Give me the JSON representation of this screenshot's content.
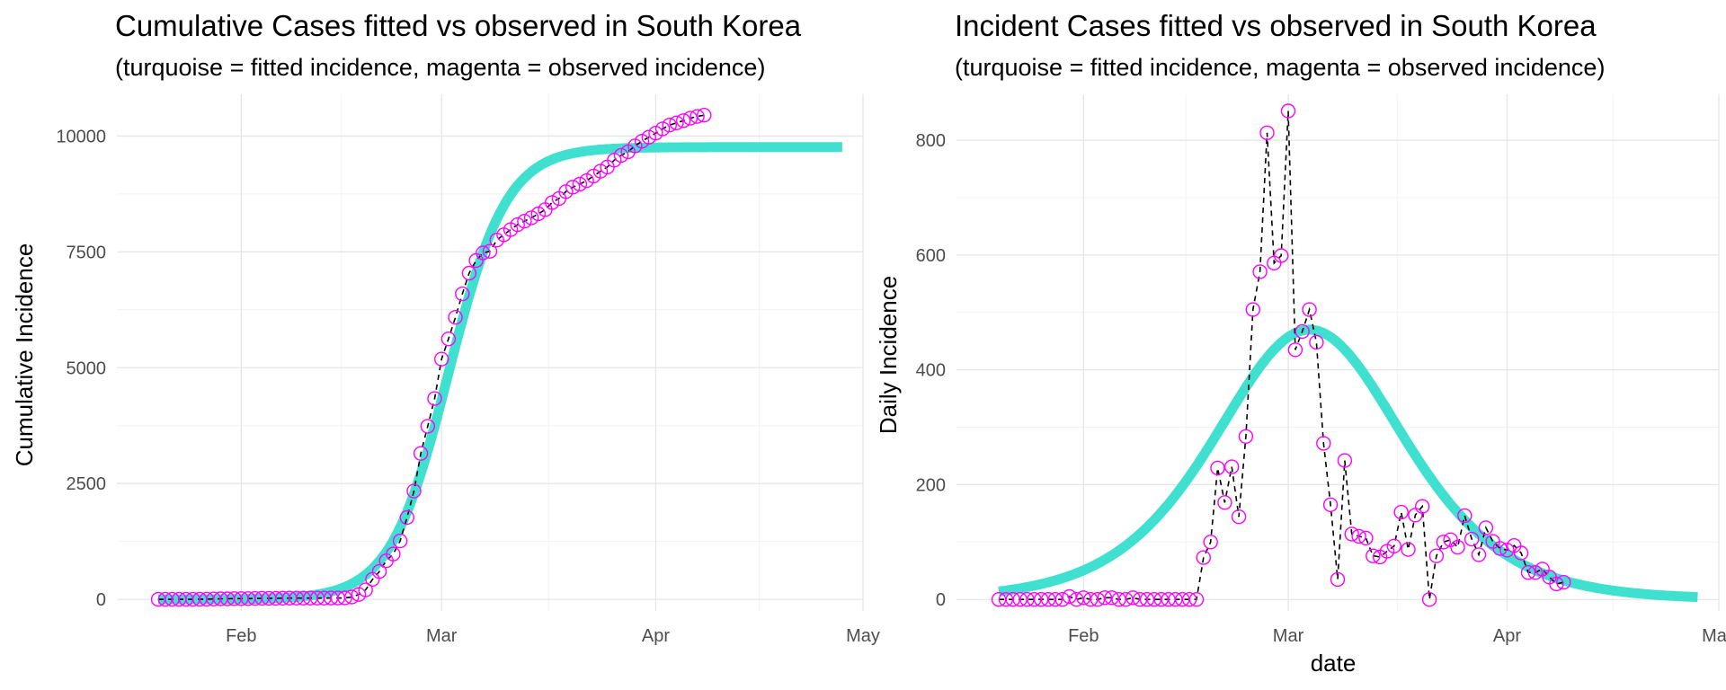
{
  "chart_data": [
    {
      "type": "line",
      "title": "Cumulative Cases fitted vs observed in South Korea",
      "subtitle": "(turquoise = fitted incidence, magenta = observed incidence)",
      "xlabel": "",
      "ylabel": "Cumulative Incidence",
      "x_range": [
        "2020-01-14",
        "2020-05-01"
      ],
      "ylim": [
        -250,
        10900
      ],
      "x_ticks": [
        {
          "date": "2020-02-01",
          "label": "Feb"
        },
        {
          "date": "2020-03-01",
          "label": "Mar"
        },
        {
          "date": "2020-04-01",
          "label": "Apr"
        },
        {
          "date": "2020-05-01",
          "label": "May"
        }
      ],
      "y_ticks": [
        {
          "value": 0,
          "label": "0"
        },
        {
          "value": 2500,
          "label": "2500"
        },
        {
          "value": 5000,
          "label": "5000"
        },
        {
          "value": 7500,
          "label": "7500"
        },
        {
          "value": 10000,
          "label": "10000"
        }
      ],
      "grid": true,
      "series": [
        {
          "kind": "fitted",
          "color": "#40e0d0",
          "x_start": "2020-01-20",
          "x_end": "2020-04-28",
          "logistic": {
            "K": 9760,
            "midpoint": "2020-03-02",
            "scale_days": 4.2
          }
        },
        {
          "kind": "observed",
          "color": "#ff00ff",
          "x_start": "2020-01-20",
          "values": [
            1,
            1,
            1,
            1,
            1,
            1,
            4,
            4,
            7,
            11,
            12,
            15,
            15,
            16,
            19,
            23,
            24,
            24,
            25,
            27,
            28,
            28,
            28,
            28,
            28,
            29,
            30,
            31,
            51,
            104,
            204,
            433,
            602,
            833,
            977,
            1261,
            1766,
            2337,
            3150,
            3736,
            4335,
            5186,
            5621,
            6088,
            6593,
            7041,
            7313,
            7478,
            7513,
            7755,
            7869,
            7979,
            8086,
            8162,
            8236,
            8320,
            8413,
            8565,
            8652,
            8799,
            8897,
            8961,
            9037,
            9137,
            9241,
            9332,
            9478,
            9583,
            9661,
            9786,
            9887,
            9976,
            10062,
            10156,
            10237,
            10284,
            10331,
            10384,
            10423,
            10450
          ]
        }
      ]
    },
    {
      "type": "line",
      "title": "Incident Cases fitted vs observed in South Korea",
      "subtitle": "(turquoise = fitted incidence, magenta = observed incidence)",
      "xlabel": "date",
      "ylabel": "Daily Incidence",
      "x_range": [
        "2020-01-14",
        "2020-05-01"
      ],
      "ylim": [
        -20,
        880
      ],
      "x_ticks": [
        {
          "date": "2020-02-01",
          "label": "Feb"
        },
        {
          "date": "2020-03-01",
          "label": "Mar"
        },
        {
          "date": "2020-04-01",
          "label": "Apr"
        },
        {
          "date": "2020-05-01",
          "label": "May"
        }
      ],
      "y_ticks": [
        {
          "value": 0,
          "label": "0"
        },
        {
          "value": 200,
          "label": "200"
        },
        {
          "value": 400,
          "label": "400"
        },
        {
          "value": 600,
          "label": "600"
        },
        {
          "value": 800,
          "label": "800"
        }
      ],
      "grid": true,
      "series": [
        {
          "kind": "fitted",
          "color": "#40e0d0",
          "x_start": "2020-01-20",
          "x_end": "2020-04-28",
          "curve": {
            "peak": 470,
            "peak_date": "2020-03-04",
            "scale_days": 9.0
          }
        },
        {
          "kind": "observed",
          "color": "#ff00ff",
          "x_start": "2020-01-20",
          "values": [
            0,
            0,
            0,
            0,
            0,
            0,
            0,
            0,
            0,
            0,
            5,
            0,
            3,
            0,
            0,
            3,
            3,
            0,
            0,
            3,
            0,
            0,
            0,
            0,
            0,
            0,
            0,
            0,
            0,
            73,
            100,
            229,
            169,
            231,
            144,
            284,
            505,
            571,
            813,
            586,
            599,
            851,
            435,
            467,
            505,
            448,
            272,
            165,
            35,
            242,
            114,
            110,
            107,
            76,
            74,
            84,
            93,
            152,
            87,
            147,
            162,
            0,
            76,
            100,
            104,
            91,
            146,
            105,
            78,
            125,
            101,
            89,
            86,
            94,
            81,
            47,
            47,
            53,
            39,
            27,
            30
          ]
        }
      ]
    }
  ]
}
